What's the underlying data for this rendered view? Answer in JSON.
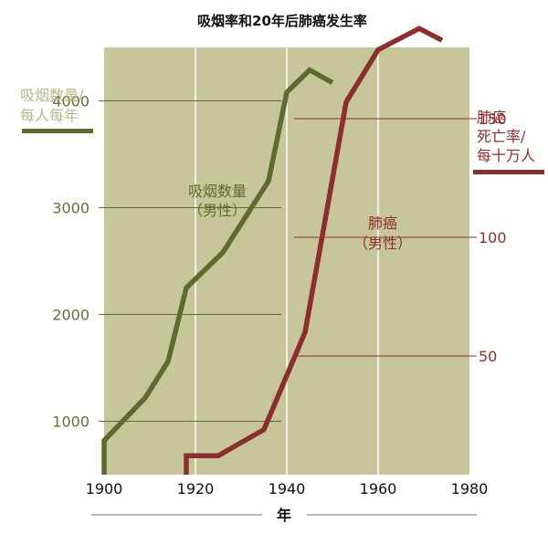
{
  "chart_data": {
    "type": "line",
    "title": "吸烟率和20年后肺癌发生率",
    "xlabel": "年",
    "xlim": [
      1900,
      1980
    ],
    "x_ticks": [
      1900,
      1920,
      1940,
      1960,
      1980
    ],
    "y_left": {
      "label_line1": "吸烟数量/",
      "label_line2": "每人每年",
      "ylim": [
        500,
        4500
      ],
      "ticks": [
        1000,
        2000,
        3000,
        4000
      ],
      "color": "#6b6b3a"
    },
    "y_right": {
      "label_line1": "肺癌",
      "label_line2": "死亡率/",
      "label_line3": "每十万人",
      "ylim": [
        0,
        180
      ],
      "ticks": [
        50,
        100,
        150
      ],
      "color": "#8b2e2e"
    },
    "grid": true,
    "series": [
      {
        "name_line1": "吸烟数量",
        "name_line2": "（男性）",
        "axis": "left",
        "color": "#5e6a2e",
        "points": [
          [
            1900,
            500
          ],
          [
            1900,
            820
          ],
          [
            1909,
            1220
          ],
          [
            1914,
            1560
          ],
          [
            1918,
            2250
          ],
          [
            1926,
            2580
          ],
          [
            1936,
            3250
          ],
          [
            1940,
            4080
          ],
          [
            1945,
            4290
          ],
          [
            1950,
            4170
          ]
        ]
      },
      {
        "name_line1": "肺癌",
        "name_line2": "（男性）",
        "axis": "right",
        "color": "#8b2e2e",
        "points": [
          [
            1918,
            0
          ],
          [
            1918,
            8
          ],
          [
            1925,
            8
          ],
          [
            1935,
            19
          ],
          [
            1944,
            60
          ],
          [
            1948,
            103
          ],
          [
            1953,
            157
          ],
          [
            1960,
            179
          ],
          [
            1969,
            188
          ],
          [
            1974,
            183
          ]
        ]
      }
    ]
  }
}
